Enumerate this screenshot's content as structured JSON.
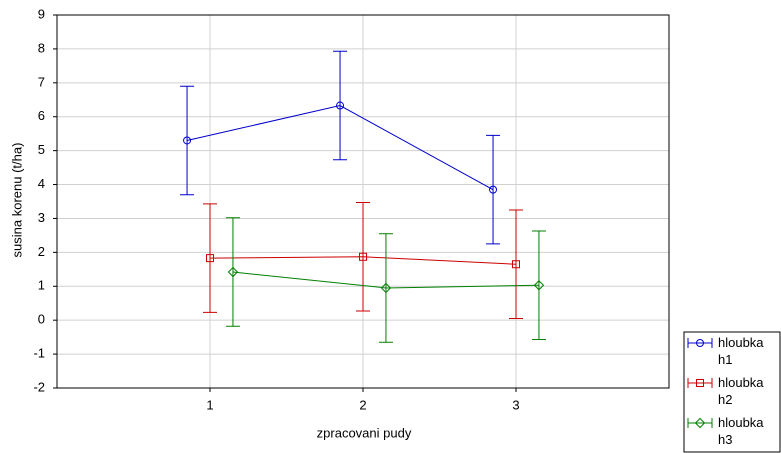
{
  "chart_data": {
    "type": "errorline",
    "x_label": "zpracovani pudy",
    "y_label": "susina korenu (t/ha)",
    "xlim": [
      0,
      4
    ],
    "xticks": [
      1,
      2,
      3
    ],
    "ylim": [
      -2,
      9
    ],
    "yticks": [
      -2,
      -1,
      0,
      1,
      2,
      3,
      4,
      5,
      6,
      7,
      8,
      9
    ],
    "grid": true,
    "legend": "bottom-right",
    "series": [
      {
        "name": "hloubka h1",
        "color": "#0000cc",
        "marker": "circle",
        "x": [
          0.85,
          1.85,
          2.85
        ],
        "values": [
          5.3,
          6.33,
          3.85
        ],
        "errors": [
          1.6,
          1.6,
          1.6
        ]
      },
      {
        "name": "hloubka h2",
        "color": "#cc0000",
        "marker": "square",
        "x": [
          1,
          2,
          3
        ],
        "values": [
          1.83,
          1.87,
          1.65
        ],
        "errors": [
          1.6,
          1.6,
          1.6
        ]
      },
      {
        "name": "hloubka h3",
        "color": "#008000",
        "marker": "diamond",
        "x": [
          1.15,
          2.15,
          3.15
        ],
        "values": [
          1.42,
          0.95,
          1.03
        ],
        "errors": [
          1.6,
          1.6,
          1.6
        ]
      }
    ]
  }
}
